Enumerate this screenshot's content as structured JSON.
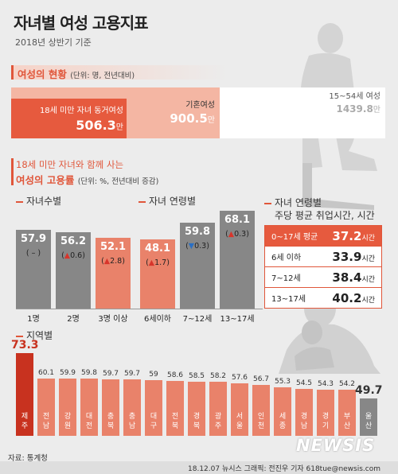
{
  "header": {
    "title": "자녀별 여성 고용지표",
    "subtitle": "2018년 상반기 기준"
  },
  "section1": {
    "heading": "여성의 현황",
    "unit": "(단위: 명, 전년대비)",
    "boxes": [
      {
        "label": "18세 미만 자녀 동거여성",
        "value": "506.3",
        "suffix": "만"
      },
      {
        "label": "기혼여성",
        "value": "900.5",
        "suffix": "만"
      },
      {
        "label": "15~54세 여성",
        "value": "1439.8",
        "suffix": "만"
      }
    ]
  },
  "section2": {
    "heading_line1": "18세 미만 자녀와 함께 사는",
    "heading_line2": "여성의 고용률",
    "unit": "(단위: %, 전년대비 증감)"
  },
  "by_children": {
    "heading": "자녀수별",
    "items": [
      {
        "label": "1명",
        "value": "57.9",
        "change": "( – )",
        "dir": "none"
      },
      {
        "label": "2명",
        "value": "56.2",
        "change": "0.6",
        "dir": "up"
      },
      {
        "label": "3명 이상",
        "value": "52.1",
        "change": "2.8",
        "dir": "up"
      }
    ]
  },
  "by_child_age": {
    "heading": "자녀 연령별",
    "items": [
      {
        "label": "6세이하",
        "value": "48.1",
        "change": "1.7",
        "dir": "up"
      },
      {
        "label": "7~12세",
        "value": "59.8",
        "change": "0.3",
        "dir": "down"
      },
      {
        "label": "13~17세",
        "value": "68.1",
        "change": "0.3",
        "dir": "up"
      }
    ]
  },
  "hours": {
    "heading_line1": "자녀 연령별",
    "heading_line2": "주당 평균 취업시간, 시간",
    "rows": [
      {
        "label": "0~17세 평균",
        "value": "37.2",
        "unit": "시간"
      },
      {
        "label": "6세 이하",
        "value": "33.9",
        "unit": "시간"
      },
      {
        "label": "7~12세",
        "value": "38.4",
        "unit": "시간"
      },
      {
        "label": "13~17세",
        "value": "40.2",
        "unit": "시간"
      }
    ]
  },
  "region": {
    "heading": "지역별"
  },
  "colors": {
    "accent": "#e0563a",
    "dark_red": "#c8321f",
    "gray_bar": "#878787",
    "light_bar": "#e9826a"
  },
  "chart_data": [
    {
      "type": "bar",
      "categories": [
        "1명",
        "2명",
        "3명 이상"
      ],
      "values": [
        57.9,
        56.2,
        52.1
      ],
      "title": "자녀수별"
    },
    {
      "type": "bar",
      "categories": [
        "6세이하",
        "7~12세",
        "13~17세"
      ],
      "values": [
        48.1,
        59.8,
        68.1
      ],
      "title": "자녀 연령별"
    },
    {
      "type": "bar",
      "categories": [
        "제주",
        "전남",
        "강원",
        "대전",
        "충북",
        "충남",
        "대구",
        "전북",
        "경북",
        "광주",
        "서울",
        "인천",
        "세종",
        "경남",
        "경기",
        "부산",
        "울산"
      ],
      "values": [
        73.3,
        60.1,
        59.9,
        59.8,
        59.7,
        59.7,
        59,
        58.6,
        58.5,
        58.2,
        57.6,
        56.7,
        55.3,
        54.5,
        54.3,
        54.2,
        49.7
      ],
      "labels": [
        "73.3",
        "60.1",
        "59.9",
        "59.8",
        "59.7",
        "59.7",
        "59",
        "58.6",
        "58.5",
        "58.2",
        "57.6",
        "56.7",
        "55.3",
        "54.5",
        "54.3",
        "54.2",
        "49.7"
      ],
      "title": "지역별"
    }
  ],
  "footer": {
    "source": "자료: 통계청",
    "credit": "18.12.07  뉴시스 그래픽: 전진우 기자 618tue@newsis.com",
    "logo": "NEWSIS"
  }
}
